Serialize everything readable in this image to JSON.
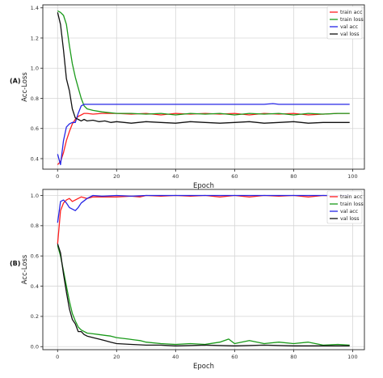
{
  "chart_data": [
    {
      "type": "line",
      "panel_label": "(A)",
      "xlabel": "Epoch",
      "ylabel": "Acc-Loss",
      "xlim": [
        -5,
        104
      ],
      "ylim": [
        0.33,
        1.42
      ],
      "xticks": [
        "0",
        "20",
        "40",
        "60",
        "80",
        "100"
      ],
      "yticks": [
        "0.4",
        "0.6",
        "0.8",
        "1.0",
        "1.2",
        "1.4"
      ],
      "grid": true,
      "legend": "top-right",
      "legend_labels": [
        "train acc",
        "train loss",
        "val acc",
        "val loss"
      ],
      "series": [
        {
          "name": "train acc",
          "color": "#ff1f1f",
          "x": [
            0,
            1,
            2,
            3,
            4,
            5,
            6,
            7,
            8,
            9,
            10,
            12,
            15,
            20,
            25,
            30,
            35,
            40,
            45,
            50,
            55,
            60,
            65,
            70,
            75,
            80,
            85,
            90,
            95,
            99
          ],
          "y": [
            0.36,
            0.38,
            0.44,
            0.52,
            0.58,
            0.63,
            0.66,
            0.68,
            0.69,
            0.7,
            0.7,
            0.695,
            0.7,
            0.7,
            0.695,
            0.7,
            0.69,
            0.7,
            0.695,
            0.7,
            0.695,
            0.7,
            0.69,
            0.7,
            0.695,
            0.7,
            0.69,
            0.695,
            0.7,
            0.7
          ]
        },
        {
          "name": "train loss",
          "color": "#1a9a1a",
          "x": [
            0,
            1,
            2,
            3,
            4,
            5,
            6,
            7,
            8,
            9,
            10,
            12,
            15,
            20,
            25,
            30,
            35,
            40,
            45,
            50,
            55,
            60,
            65,
            70,
            75,
            80,
            85,
            90,
            95,
            99
          ],
          "y": [
            1.38,
            1.37,
            1.35,
            1.29,
            1.15,
            1.03,
            0.94,
            0.87,
            0.8,
            0.75,
            0.73,
            0.72,
            0.71,
            0.7,
            0.7,
            0.695,
            0.7,
            0.69,
            0.7,
            0.695,
            0.7,
            0.69,
            0.7,
            0.695,
            0.7,
            0.69,
            0.7,
            0.695,
            0.7,
            0.7
          ]
        },
        {
          "name": "val acc",
          "color": "#2626e6",
          "x": [
            0,
            1,
            2,
            3,
            4,
            5,
            6,
            7,
            8,
            9,
            10,
            15,
            20,
            30,
            40,
            50,
            60,
            70,
            73,
            75,
            80,
            90,
            99
          ],
          "y": [
            0.43,
            0.36,
            0.52,
            0.61,
            0.63,
            0.64,
            0.64,
            0.7,
            0.75,
            0.76,
            0.76,
            0.76,
            0.76,
            0.76,
            0.76,
            0.76,
            0.76,
            0.76,
            0.765,
            0.76,
            0.76,
            0.76,
            0.76
          ]
        },
        {
          "name": "val loss",
          "color": "#111111",
          "x": [
            0,
            1,
            2,
            3,
            4,
            5,
            6,
            7,
            8,
            9,
            10,
            12,
            14,
            16,
            18,
            20,
            25,
            30,
            35,
            40,
            45,
            50,
            55,
            60,
            65,
            70,
            75,
            80,
            85,
            90,
            95,
            99
          ],
          "y": [
            1.37,
            1.29,
            1.12,
            0.93,
            0.85,
            0.73,
            0.67,
            0.66,
            0.65,
            0.66,
            0.65,
            0.655,
            0.645,
            0.65,
            0.64,
            0.645,
            0.635,
            0.645,
            0.64,
            0.635,
            0.645,
            0.64,
            0.635,
            0.64,
            0.645,
            0.635,
            0.64,
            0.645,
            0.635,
            0.64,
            0.64,
            0.64
          ]
        }
      ]
    },
    {
      "type": "line",
      "panel_label": "(B)",
      "xlabel": "Epoch",
      "ylabel": "Acc-Loss",
      "xlim": [
        -5,
        104
      ],
      "ylim": [
        -0.02,
        1.04
      ],
      "xticks": [
        "0",
        "20",
        "40",
        "60",
        "80",
        "100"
      ],
      "yticks": [
        "0.0",
        "0.2",
        "0.4",
        "0.6",
        "0.8",
        "1.0"
      ],
      "grid": true,
      "legend": "right",
      "legend_labels": [
        "train acc",
        "train loss",
        "val acc",
        "val loss"
      ],
      "series": [
        {
          "name": "train acc",
          "color": "#ff1f1f",
          "x": [
            0,
            1,
            2,
            3,
            4,
            5,
            6,
            7,
            8,
            10,
            12,
            15,
            20,
            25,
            28,
            30,
            35,
            40,
            45,
            50,
            55,
            60,
            65,
            70,
            75,
            80,
            85,
            90,
            95,
            99
          ],
          "y": [
            0.68,
            0.9,
            0.95,
            0.97,
            0.98,
            0.96,
            0.97,
            0.98,
            0.99,
            0.98,
            0.99,
            0.99,
            0.99,
            0.995,
            0.99,
            1.0,
            0.995,
            1.0,
            0.995,
            1.0,
            0.99,
            1.0,
            0.99,
            1.0,
            0.995,
            1.0,
            0.99,
            1.0,
            0.995,
            1.0
          ]
        },
        {
          "name": "train loss",
          "color": "#1a9a1a",
          "x": [
            0,
            1,
            2,
            3,
            4,
            5,
            6,
            7,
            8,
            9,
            10,
            12,
            14,
            16,
            18,
            20,
            22,
            24,
            26,
            28,
            30,
            35,
            40,
            45,
            50,
            55,
            58,
            60,
            65,
            70,
            75,
            80,
            85,
            90,
            95,
            99
          ],
          "y": [
            0.67,
            0.6,
            0.5,
            0.4,
            0.3,
            0.22,
            0.17,
            0.13,
            0.11,
            0.1,
            0.09,
            0.085,
            0.08,
            0.075,
            0.07,
            0.06,
            0.055,
            0.05,
            0.045,
            0.04,
            0.03,
            0.02,
            0.015,
            0.02,
            0.015,
            0.03,
            0.05,
            0.02,
            0.04,
            0.02,
            0.03,
            0.02,
            0.03,
            0.01,
            0.015,
            0.01
          ]
        },
        {
          "name": "val acc",
          "color": "#2626e6",
          "x": [
            0,
            1,
            2,
            3,
            4,
            5,
            6,
            7,
            8,
            10,
            12,
            15,
            20,
            25,
            30,
            40,
            50,
            60,
            70,
            80,
            90,
            99
          ],
          "y": [
            0.82,
            0.96,
            0.97,
            0.95,
            0.92,
            0.91,
            0.9,
            0.92,
            0.95,
            0.98,
            1.0,
            0.995,
            1.0,
            0.995,
            1.0,
            1.0,
            1.0,
            1.0,
            1.0,
            1.0,
            1.0,
            1.0
          ]
        },
        {
          "name": "val loss",
          "color": "#111111",
          "x": [
            0,
            1,
            2,
            3,
            4,
            5,
            6,
            7,
            8,
            9,
            10,
            12,
            14,
            16,
            18,
            20,
            25,
            30,
            35,
            40,
            50,
            60,
            70,
            80,
            90,
            99
          ],
          "y": [
            0.68,
            0.62,
            0.48,
            0.36,
            0.25,
            0.18,
            0.15,
            0.1,
            0.1,
            0.08,
            0.07,
            0.06,
            0.05,
            0.04,
            0.03,
            0.02,
            0.015,
            0.01,
            0.01,
            0.005,
            0.01,
            0.005,
            0.01,
            0.005,
            0.005,
            0.005
          ]
        }
      ]
    }
  ]
}
